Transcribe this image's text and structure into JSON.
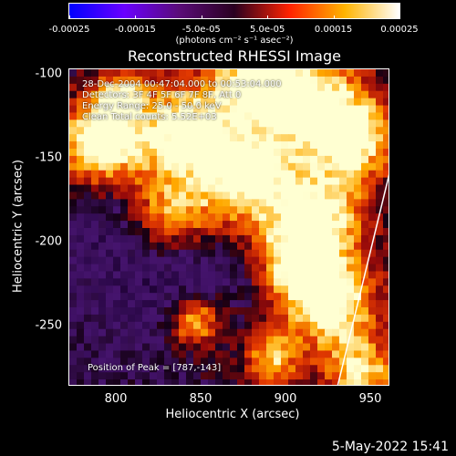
{
  "colorbar": {
    "tick_labels": [
      "-0.00025",
      "-0.00015",
      "-5.0e-05",
      "5.0e-05",
      "0.00015",
      "0.00025"
    ],
    "units": "(photons cm⁻² s⁻¹ asec⁻²)",
    "colors": [
      "#0000ff",
      "#6a00ff",
      "#5a0c78",
      "#2a0020",
      "#ff2200",
      "#ffb400",
      "#ffffff"
    ]
  },
  "title": "Reconstructed RHESSI Image",
  "info_lines": [
    "28-Dec-2004 00:47:04.000 to 00:53:04.000",
    "Detectors: 3F 4F 5F 6F 7F 8F, Att 0",
    "Energy Range: 25.0 - 50.0 keV",
    "Clean     Total counts: 5.52E+03"
  ],
  "peak_text": "Position of Peak = [787,-143]",
  "axes": {
    "x_title": "Heliocentric X (arcsec)",
    "y_title": "Heliocentric Y (arcsec)",
    "x_ticks": [
      "800",
      "850",
      "900",
      "950"
    ],
    "y_ticks": [
      "-100",
      "-150",
      "-200",
      "-250"
    ]
  },
  "datestamp": "5-May-2022 15:41"
}
